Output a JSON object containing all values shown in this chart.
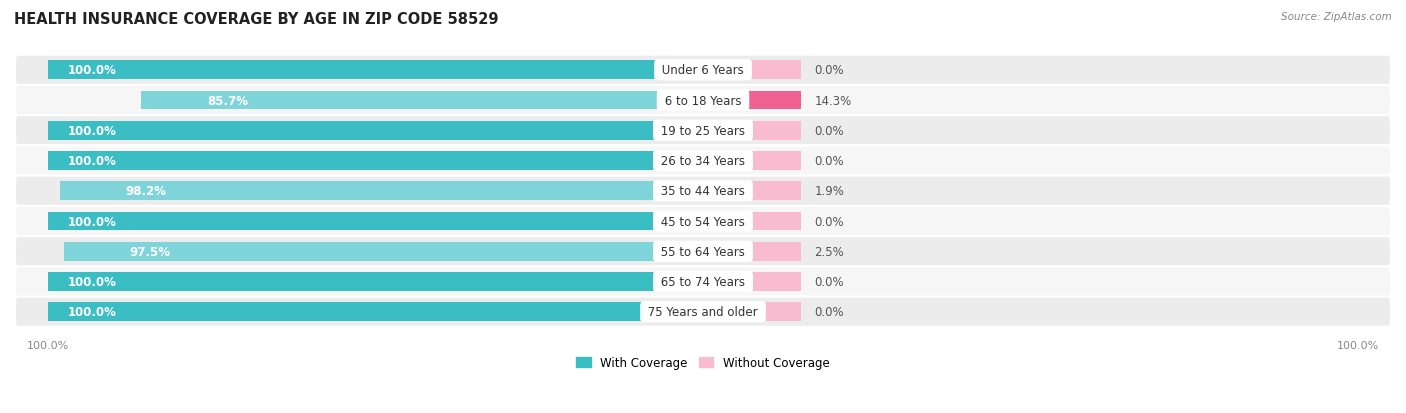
{
  "title": "HEALTH INSURANCE COVERAGE BY AGE IN ZIP CODE 58529",
  "source": "Source: ZipAtlas.com",
  "categories": [
    "Under 6 Years",
    "6 to 18 Years",
    "19 to 25 Years",
    "26 to 34 Years",
    "35 to 44 Years",
    "45 to 54 Years",
    "55 to 64 Years",
    "65 to 74 Years",
    "75 Years and older"
  ],
  "with_coverage": [
    100.0,
    85.7,
    100.0,
    100.0,
    98.2,
    100.0,
    97.5,
    100.0,
    100.0
  ],
  "without_coverage": [
    0.0,
    14.3,
    0.0,
    0.0,
    1.9,
    0.0,
    2.5,
    0.0,
    0.0
  ],
  "color_with": "#3bbdc4",
  "color_with_light": "#7fd4d9",
  "color_without_strong": "#f06292",
  "color_without_light": "#f8bbd0",
  "title_fontsize": 10.5,
  "label_fontsize": 8.5,
  "pct_fontsize": 8.5,
  "tick_fontsize": 8,
  "bar_height": 0.62,
  "min_without_display": 15,
  "background_color": "#ffffff",
  "row_color_even": "#ececec",
  "row_color_odd": "#f6f6f6",
  "legend_label_with": "With Coverage",
  "legend_label_without": "Without Coverage"
}
